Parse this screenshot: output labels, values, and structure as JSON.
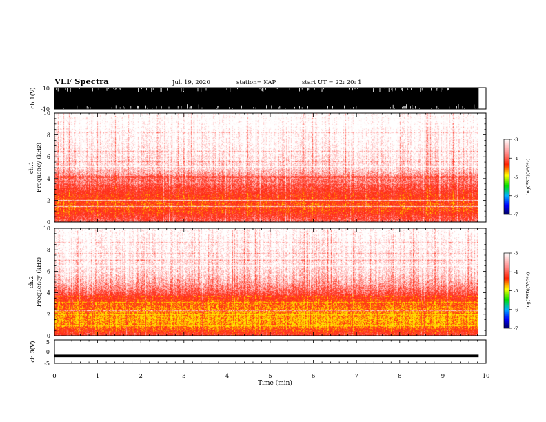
{
  "header": {
    "title": "VLF Spectra",
    "date": "Jul. 19, 2020",
    "station": "station= KAP",
    "start": "start UT = 22: 20: 1"
  },
  "colors": {
    "spec_low": "#ff3b2a",
    "spec_peak": "#ffe600",
    "waveform": "#000000",
    "background": "#ffffff"
  },
  "chart_data": [
    {
      "type": "area",
      "panel": "ch1-waveform",
      "ylabel": "ch.1(V)",
      "yticks": [
        "10",
        "-10"
      ],
      "ylim": [
        -10,
        10
      ],
      "xlim": [
        0,
        10
      ],
      "description_of_values": "saturated broadband waveform between -10 and 10 V"
    },
    {
      "type": "heatmap",
      "panel": "ch1-spectrogram",
      "ylabel": "ch.1 Frequency (kHz)",
      "yticks": [
        "0",
        "2",
        "4",
        "6",
        "8",
        "10"
      ],
      "ylim": [
        0,
        10
      ],
      "xlim": [
        0,
        9.83
      ],
      "intensity_profile": {
        "freq_khz": [
          0,
          0.5,
          1,
          1.5,
          2,
          2.5,
          3,
          3.5,
          4,
          5,
          6,
          7,
          8,
          9,
          10
        ],
        "log_psd": [
          -4.6,
          -4.3,
          -4.0,
          -3.9,
          -4.0,
          -4.1,
          -4.3,
          -4.5,
          -4.7,
          -5.2,
          -5.4,
          -5.5,
          -5.6,
          -5.7,
          -5.8
        ]
      }
    },
    {
      "type": "heatmap",
      "panel": "ch2-spectrogram",
      "ylabel": "ch.2 Frequency (kHz)",
      "yticks": [
        "0",
        "2",
        "4",
        "6",
        "8",
        "10"
      ],
      "ylim": [
        0,
        10
      ],
      "xlim": [
        0,
        9.83
      ],
      "intensity_profile": {
        "freq_khz": [
          0,
          0.5,
          1,
          1.5,
          2,
          2.5,
          3,
          3.5,
          4,
          5,
          6,
          7,
          8,
          9,
          10
        ],
        "log_psd": [
          -4.4,
          -4.0,
          -3.6,
          -3.5,
          -3.6,
          -3.7,
          -3.8,
          -4.1,
          -4.5,
          -5.0,
          -5.3,
          -5.4,
          -5.5,
          -5.6,
          -5.7
        ]
      }
    },
    {
      "type": "line",
      "panel": "ch3-waveform",
      "ylabel": "ch.3(V)",
      "yticks": [
        "5",
        "0",
        "-5"
      ],
      "ylim": [
        -5,
        5
      ],
      "xlim": [
        0,
        9.83
      ],
      "band": [
        -2.4,
        -1.3
      ]
    }
  ],
  "colorbar": {
    "label": "log(PSD)(V²/Hz)",
    "ticks": [
      "-3",
      "-4",
      "-5",
      "-6",
      "-7"
    ],
    "range": [
      -7,
      -3
    ]
  },
  "xaxis": {
    "label": "Time (min)",
    "ticks": [
      "0",
      "1",
      "2",
      "3",
      "4",
      "5",
      "6",
      "7",
      "8",
      "9",
      "10"
    ],
    "range": [
      0,
      10
    ]
  }
}
